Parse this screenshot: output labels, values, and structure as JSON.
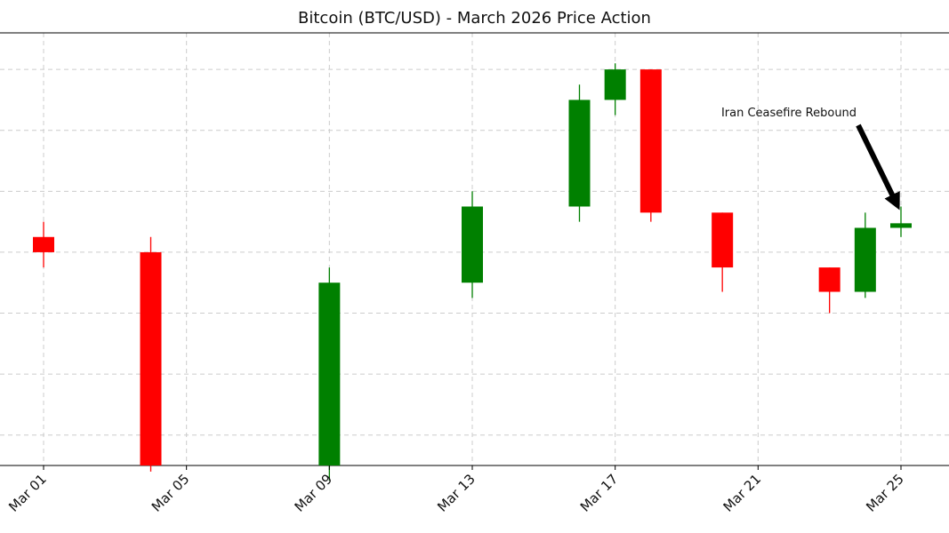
{
  "chart_data": {
    "type": "candlestick",
    "title": "Bitcoin (BTC/USD) - March 2026 Price Action",
    "xlabel": "",
    "ylabel": "",
    "x_ticks": [
      "Mar 01",
      "Mar 05",
      "Mar 09",
      "Mar 13",
      "Mar 17",
      "Mar 21",
      "Mar 25"
    ],
    "x_range": [
      "2026-02-28",
      "2026-03-26"
    ],
    "y_range": [
      63000,
      77200
    ],
    "y_tick_values": [
      64000,
      66000,
      68000,
      70000,
      72000,
      74000,
      76000
    ],
    "y_tick_labels_visible": false,
    "grid": true,
    "up_color": "#008000",
    "down_color": "#ff0000",
    "candles": [
      {
        "date": "2026-03-01",
        "open": 70500,
        "high": 71000,
        "low": 69500,
        "close": 70000
      },
      {
        "date": "2026-03-04",
        "open": 70000,
        "high": 70500,
        "low": 62800,
        "close": 63000
      },
      {
        "date": "2026-03-09",
        "open": 63000,
        "high": 69500,
        "low": 62500,
        "close": 69000
      },
      {
        "date": "2026-03-13",
        "open": 69000,
        "high": 72000,
        "low": 68500,
        "close": 71500
      },
      {
        "date": "2026-03-16",
        "open": 71500,
        "high": 75500,
        "low": 71000,
        "close": 75000
      },
      {
        "date": "2026-03-17",
        "open": 75000,
        "high": 76200,
        "low": 74500,
        "close": 76000
      },
      {
        "date": "2026-03-18",
        "open": 76000,
        "high": 76000,
        "low": 71000,
        "close": 71300
      },
      {
        "date": "2026-03-20",
        "open": 71300,
        "high": 71300,
        "low": 68700,
        "close": 69500
      },
      {
        "date": "2026-03-23",
        "open": 69500,
        "high": 69500,
        "low": 68000,
        "close": 68700
      },
      {
        "date": "2026-03-24",
        "open": 68700,
        "high": 71300,
        "low": 68500,
        "close": 70800
      },
      {
        "date": "2026-03-25",
        "open": 70800,
        "high": 71500,
        "low": 70500,
        "close": 70950
      }
    ],
    "annotations": [
      {
        "text": "Iran Ceasefire Rebound",
        "target_date": "2026-03-25",
        "target_value": 71300
      }
    ]
  }
}
